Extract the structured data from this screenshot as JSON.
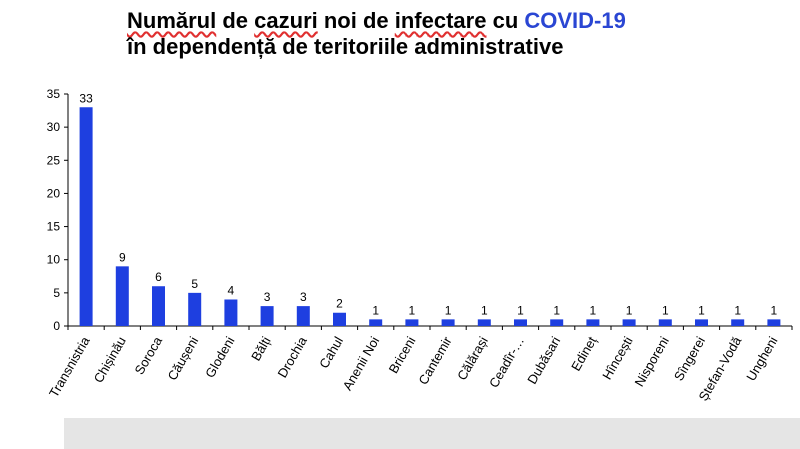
{
  "title": {
    "line1_words": [
      "Numărul",
      " de ",
      "cazuri",
      " noi de ",
      "infectare",
      " cu "
    ],
    "line1_accent": "COVID-19",
    "line2": "în dependență de teritoriile administrative"
  },
  "colors": {
    "bar": "#1e3fe0",
    "accent": "#2a46d3",
    "axis": "#000000"
  },
  "chart_data": {
    "type": "bar",
    "title": "Numărul de cazuri noi de infectare cu COVID-19 în dependență de teritoriile administrative",
    "ylabel": "",
    "xlabel": "",
    "ylim": [
      0,
      35
    ],
    "yticks": [
      0,
      5,
      10,
      15,
      20,
      25,
      30,
      35
    ],
    "categories": [
      "Transnistria",
      "Chișinău",
      "Soroca",
      "Căușeni",
      "Glodeni",
      "Bălți",
      "Drochia",
      "Cahul",
      "Anenii Noi",
      "Briceni",
      "Cantemir",
      "Călărași",
      "Ceadîr-…",
      "Dubăsari",
      "Edineț",
      "Hîncești",
      "Nisporeni",
      "Sîngerei",
      "Ștefan-Vodă",
      "Ungheni"
    ],
    "values": [
      33,
      9,
      6,
      5,
      4,
      3,
      3,
      2,
      1,
      1,
      1,
      1,
      1,
      1,
      1,
      1,
      1,
      1,
      1,
      1
    ],
    "data_labels": true,
    "grid": false,
    "legend": "none"
  }
}
